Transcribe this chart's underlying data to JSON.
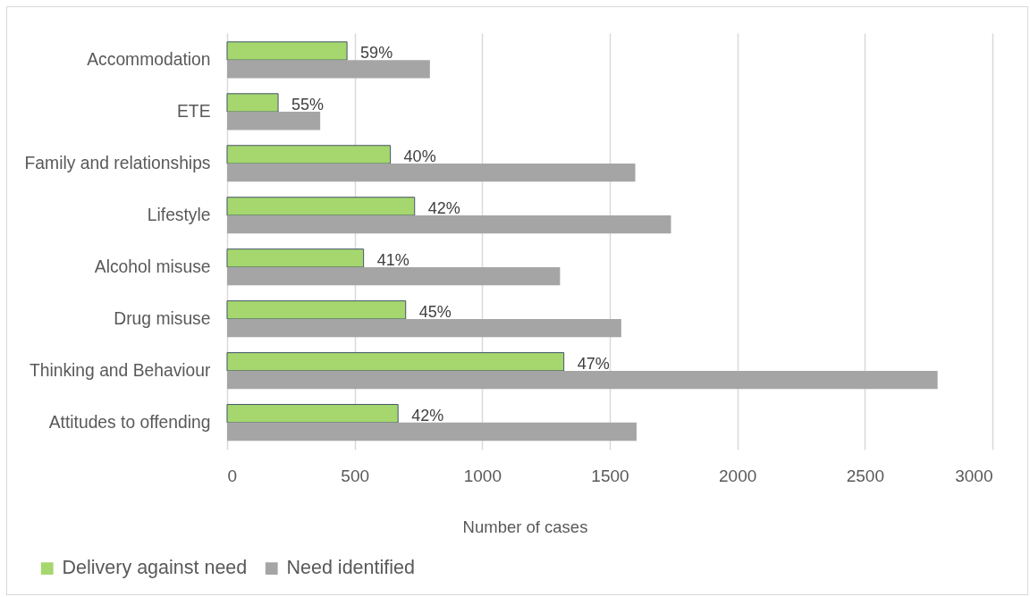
{
  "chart_data": {
    "type": "bar",
    "orientation": "horizontal",
    "categories": [
      "Accommodation",
      "ETE",
      "Family and relationships",
      "Lifestyle",
      "Alcohol misuse",
      "Drug misuse",
      "Thinking and Behaviour",
      "Attitudes to offending"
    ],
    "series": [
      {
        "name": "Delivery against need",
        "color": "#a5d76e",
        "values": [
          470,
          200,
          640,
          735,
          535,
          700,
          1320,
          670
        ]
      },
      {
        "name": "Need identified",
        "color": "#a5a5a5",
        "values": [
          795,
          365,
          1600,
          1740,
          1305,
          1545,
          2785,
          1605
        ]
      }
    ],
    "annotations": [
      {
        "text": "59%",
        "x": 470,
        "y": "Accommodation"
      },
      {
        "text": "55%",
        "x": 200,
        "y": "ETE"
      },
      {
        "text": "40%",
        "x": 640,
        "y": "Family and relationships"
      },
      {
        "text": "42%",
        "x": 735,
        "y": "Lifestyle"
      },
      {
        "text": "41%",
        "x": 535,
        "y": "Alcohol misuse"
      },
      {
        "text": "45%",
        "x": 700,
        "y": "Drug misuse"
      },
      {
        "text": "47%",
        "x": 1320,
        "y": "Thinking and Behaviour"
      },
      {
        "text": "42%",
        "x": 670,
        "y": "Attitudes to offending"
      }
    ],
    "xlabel": "Number of cases",
    "xlim": [
      0,
      3000
    ],
    "xticks": [
      0,
      500,
      {
        "value": 1000,
        "label": "1000"
      },
      {
        "value": 1500,
        "label": "1500"
      },
      {
        "value": 2000,
        "label": "2000"
      },
      {
        "value": 2500,
        "label": "2500"
      },
      {
        "value": 3000,
        "label": "3000"
      }
    ],
    "grid": "x",
    "legend": "bottom left"
  }
}
